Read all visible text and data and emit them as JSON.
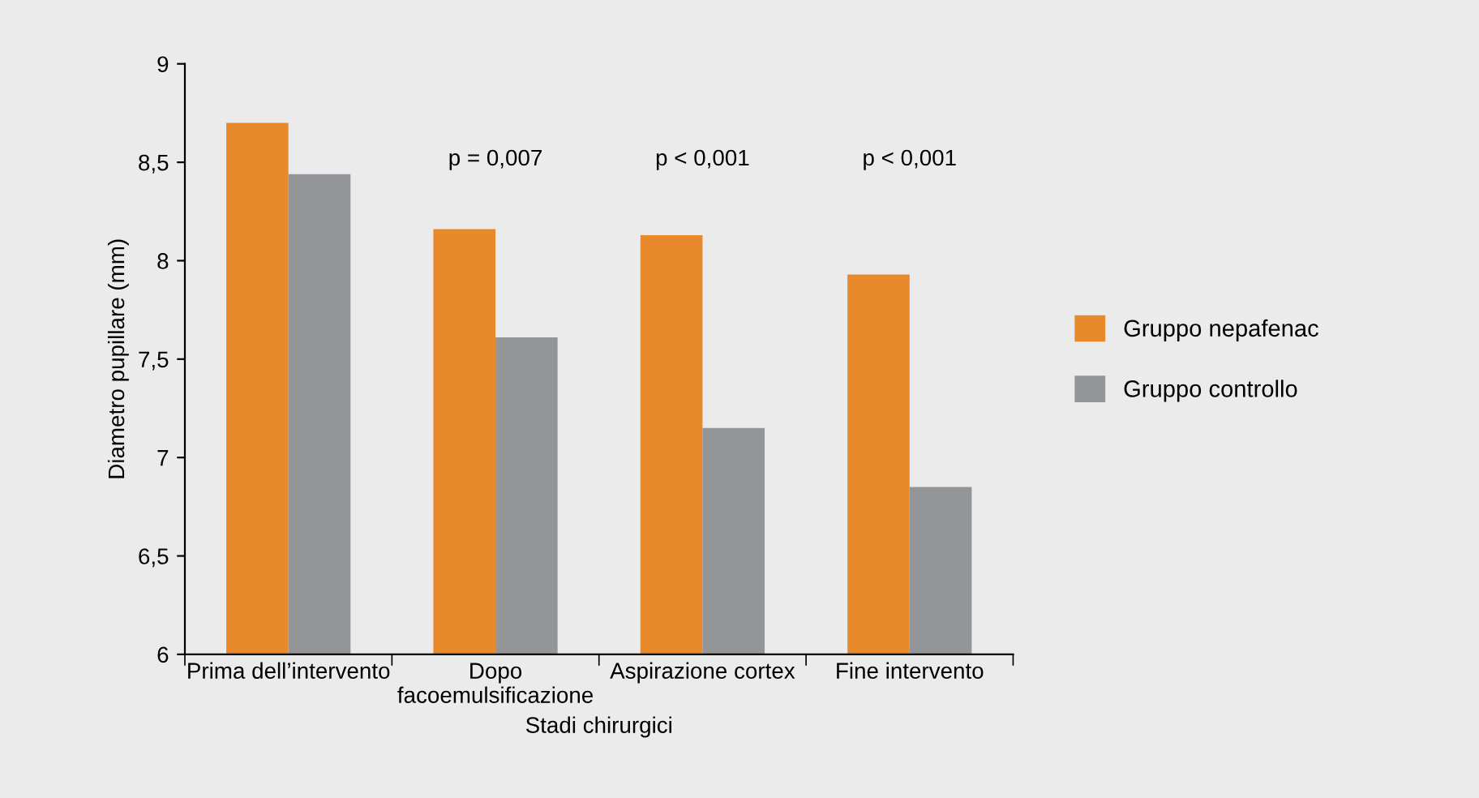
{
  "chart_data": {
    "type": "bar",
    "xlabel": "Stadi chirurgici",
    "ylabel": "Diametro pupillare (mm)",
    "categories": [
      "Prima dell’intervento",
      "Dopo\nfacoemulsificazione",
      "Aspirazione cortex",
      "Fine intervento"
    ],
    "series": [
      {
        "name": "Gruppo nepafenac",
        "color": "#e8892b",
        "values": [
          8.7,
          8.16,
          8.13,
          7.93
        ]
      },
      {
        "name": "Gruppo controllo",
        "color": "#939598",
        "values": [
          8.44,
          7.61,
          7.15,
          6.85
        ]
      }
    ],
    "ylim": [
      6,
      9
    ],
    "yticks": [
      6,
      {
        "value": 6.5,
        "label": "6,5"
      },
      7,
      {
        "value": 7.5,
        "label": "7,5"
      },
      8,
      {
        "value": 8.5,
        "label": "8,5"
      },
      9
    ],
    "annotations": [
      "p = 0,007",
      "p < 0,001",
      "p < 0,001"
    ],
    "grid": false,
    "legend": "right"
  }
}
